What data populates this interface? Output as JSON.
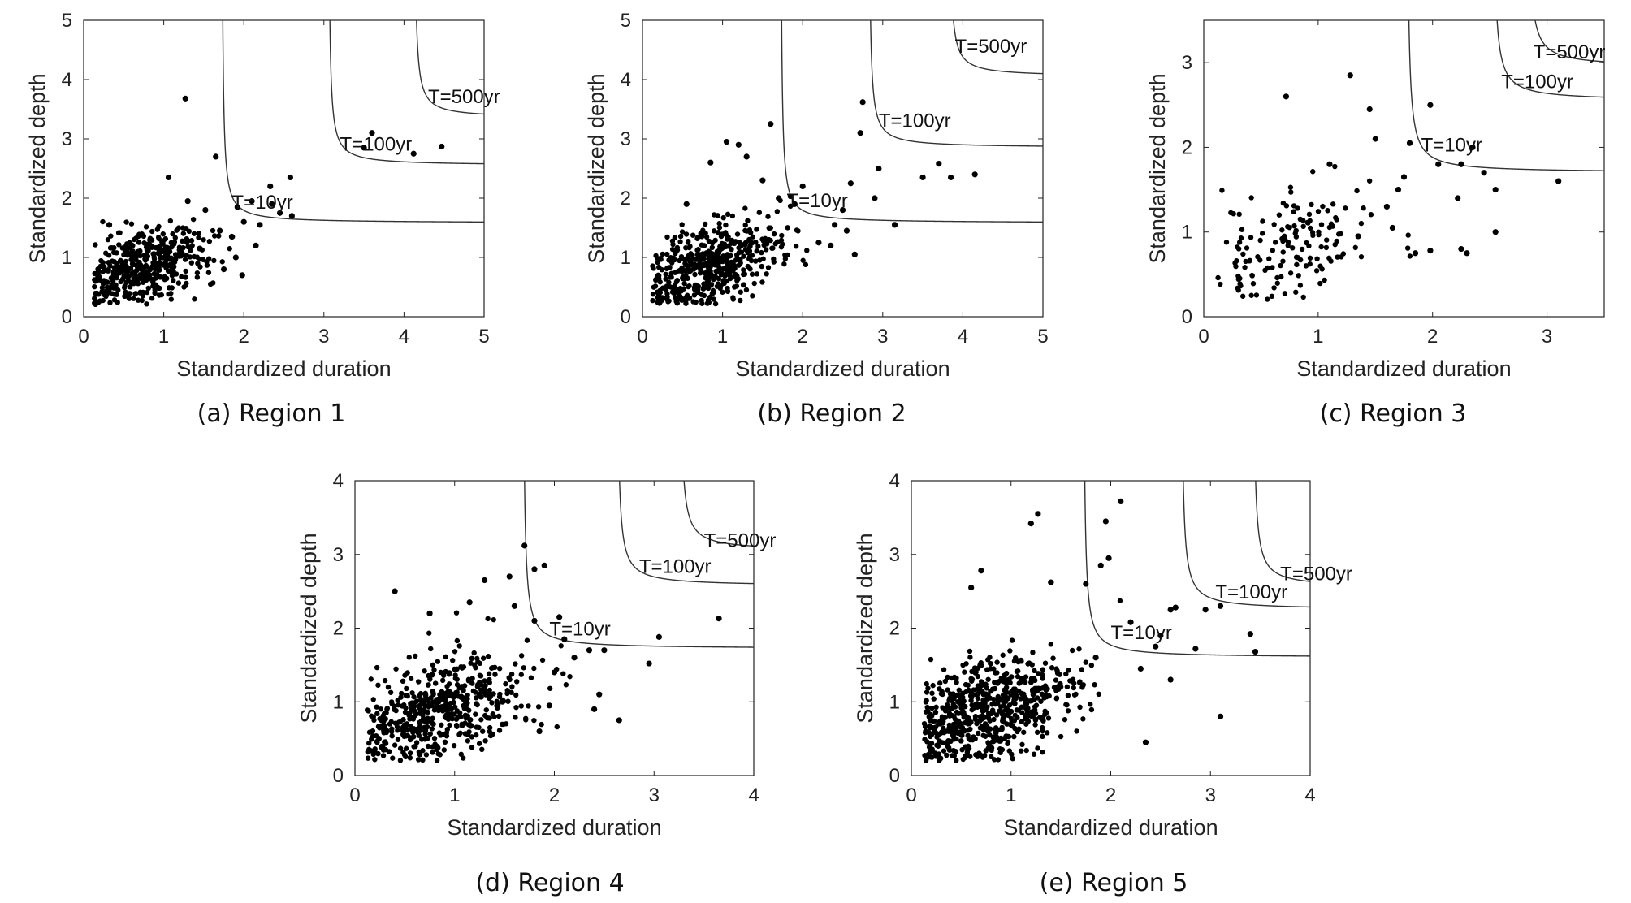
{
  "figure": {
    "xlabel": "Standardized duration",
    "ylabel": "Standardized depth"
  },
  "chart_data": [
    {
      "type": "scatter",
      "caption": "(a) Region 1",
      "xlabel": "Standardized duration",
      "ylabel": "Standardized depth",
      "xlim": [
        0,
        5
      ],
      "ylim": [
        0,
        5
      ],
      "xticks": [
        "0",
        "1",
        "2",
        "3",
        "4",
        "5"
      ],
      "yticks": [
        "0",
        "1",
        "2",
        "3",
        "4",
        "5"
      ],
      "cluster": {
        "cx": 0.75,
        "cy": 0.85,
        "sx": 0.4,
        "sy": 0.3,
        "n": 420
      },
      "points": [
        [
          1.27,
          3.68
        ],
        [
          1.65,
          2.7
        ],
        [
          3.6,
          3.1
        ],
        [
          4.47,
          2.87
        ],
        [
          3.5,
          2.85
        ],
        [
          4.12,
          2.75
        ],
        [
          2.58,
          2.35
        ],
        [
          2.33,
          2.2
        ],
        [
          1.06,
          2.35
        ],
        [
          2.1,
          1.95
        ],
        [
          2.45,
          1.75
        ],
        [
          1.92,
          1.85
        ],
        [
          2.2,
          1.55
        ],
        [
          1.7,
          1.45
        ],
        [
          2.35,
          1.9
        ],
        [
          1.85,
          1.35
        ],
        [
          2.0,
          1.6
        ],
        [
          1.45,
          1.15
        ],
        [
          1.9,
          1.0
        ],
        [
          1.75,
          0.8
        ],
        [
          1.52,
          1.8
        ],
        [
          2.6,
          1.7
        ],
        [
          1.3,
          1.95
        ],
        [
          0.32,
          1.55
        ],
        [
          1.98,
          0.7
        ],
        [
          2.15,
          1.2
        ]
      ],
      "return_periods": [
        {
          "label": "T=10yr",
          "x_asym": 1.72,
          "y_asym": 1.58,
          "label_x": 1.85,
          "label_y": 1.82
        },
        {
          "label": "T=100yr",
          "x_asym": 3.05,
          "y_asym": 2.55,
          "label_x": 3.2,
          "label_y": 2.8
        },
        {
          "label": "T=500yr",
          "x_asym": 4.12,
          "y_asym": 3.35,
          "label_x": 4.3,
          "label_y": 3.6
        }
      ]
    },
    {
      "type": "scatter",
      "caption": "(b) Region 2",
      "xlabel": "Standardized duration",
      "ylabel": "Standardized depth",
      "xlim": [
        0,
        5
      ],
      "ylim": [
        0,
        5
      ],
      "xticks": [
        "0",
        "1",
        "2",
        "3",
        "4",
        "5"
      ],
      "yticks": [
        "0",
        "1",
        "2",
        "3",
        "4",
        "5"
      ],
      "cluster": {
        "cx": 0.85,
        "cy": 0.85,
        "sx": 0.45,
        "sy": 0.35,
        "n": 480
      },
      "points": [
        [
          2.75,
          3.62
        ],
        [
          2.72,
          3.1
        ],
        [
          1.6,
          3.25
        ],
        [
          3.7,
          2.58
        ],
        [
          3.5,
          2.35
        ],
        [
          3.85,
          2.35
        ],
        [
          4.15,
          2.4
        ],
        [
          2.95,
          2.5
        ],
        [
          2.6,
          2.25
        ],
        [
          1.05,
          2.95
        ],
        [
          1.2,
          2.9
        ],
        [
          0.85,
          2.6
        ],
        [
          1.3,
          2.7
        ],
        [
          2.4,
          1.55
        ],
        [
          2.9,
          2.0
        ],
        [
          2.55,
          1.45
        ],
        [
          2.2,
          1.25
        ],
        [
          1.7,
          2.0
        ],
        [
          2.0,
          2.2
        ],
        [
          3.15,
          1.55
        ],
        [
          1.9,
          1.9
        ],
        [
          2.5,
          1.8
        ],
        [
          2.65,
          1.05
        ],
        [
          2.35,
          1.2
        ],
        [
          1.5,
          2.3
        ],
        [
          0.55,
          1.9
        ]
      ],
      "return_periods": [
        {
          "label": "T=10yr",
          "x_asym": 1.72,
          "y_asym": 1.58,
          "label_x": 1.8,
          "label_y": 1.85
        },
        {
          "label": "T=100yr",
          "x_asym": 2.82,
          "y_asym": 2.85,
          "label_x": 2.95,
          "label_y": 3.2
        },
        {
          "label": "T=500yr",
          "x_asym": 3.82,
          "y_asym": 4.05,
          "label_x": 3.9,
          "label_y": 4.45
        }
      ]
    },
    {
      "type": "scatter",
      "caption": "(c) Region 3",
      "xlabel": "Standardized duration",
      "ylabel": "Standardized depth",
      "xlim": [
        0,
        3.5
      ],
      "ylim": [
        0,
        3.5
      ],
      "xticks": [
        "0",
        "1",
        "2",
        "3"
      ],
      "yticks": [
        "0",
        "1",
        "2",
        "3"
      ],
      "cluster": {
        "cx": 0.75,
        "cy": 0.85,
        "sx": 0.35,
        "sy": 0.3,
        "n": 150
      },
      "points": [
        [
          1.28,
          2.85
        ],
        [
          0.72,
          2.6
        ],
        [
          1.45,
          2.45
        ],
        [
          1.98,
          2.5
        ],
        [
          2.35,
          2.0
        ],
        [
          2.25,
          1.8
        ],
        [
          2.45,
          1.7
        ],
        [
          2.22,
          1.4
        ],
        [
          2.55,
          1.5
        ],
        [
          3.1,
          1.6
        ],
        [
          2.25,
          0.8
        ],
        [
          2.55,
          1.0
        ],
        [
          2.3,
          0.75
        ],
        [
          1.98,
          0.78
        ],
        [
          1.8,
          2.05
        ],
        [
          1.75,
          1.65
        ],
        [
          1.85,
          0.75
        ],
        [
          1.5,
          2.1
        ],
        [
          1.6,
          1.3
        ],
        [
          2.05,
          1.8
        ],
        [
          1.1,
          1.8
        ],
        [
          1.65,
          1.05
        ],
        [
          1.35,
          0.95
        ],
        [
          1.7,
          1.5
        ]
      ],
      "return_periods": [
        {
          "label": "T=10yr",
          "x_asym": 1.77,
          "y_asym": 1.7,
          "label_x": 1.9,
          "label_y": 1.95
        },
        {
          "label": "T=100yr",
          "x_asym": 2.52,
          "y_asym": 2.55,
          "label_x": 2.6,
          "label_y": 2.7
        },
        {
          "label": "T=500yr",
          "x_asym": 2.82,
          "y_asym": 2.95,
          "label_x": 2.88,
          "label_y": 3.05
        }
      ]
    },
    {
      "type": "scatter",
      "caption": "(d) Region 4",
      "xlabel": "Standardized duration",
      "ylabel": "Standardized depth",
      "xlim": [
        0,
        4
      ],
      "ylim": [
        0,
        4
      ],
      "xticks": [
        "0",
        "1",
        "2",
        "3",
        "4"
      ],
      "yticks": [
        "0",
        "1",
        "2",
        "3",
        "4"
      ],
      "cluster": {
        "cx": 0.85,
        "cy": 0.9,
        "sx": 0.45,
        "sy": 0.35,
        "n": 520
      },
      "points": [
        [
          1.7,
          3.12
        ],
        [
          1.9,
          2.85
        ],
        [
          1.8,
          2.8
        ],
        [
          1.55,
          2.7
        ],
        [
          1.3,
          2.65
        ],
        [
          0.4,
          2.5
        ],
        [
          2.05,
          2.15
        ],
        [
          1.8,
          2.1
        ],
        [
          2.35,
          1.7
        ],
        [
          2.45,
          1.1
        ],
        [
          2.4,
          0.9
        ],
        [
          2.65,
          0.75
        ],
        [
          3.05,
          1.88
        ],
        [
          2.95,
          1.52
        ],
        [
          3.65,
          2.13
        ],
        [
          2.1,
          1.85
        ],
        [
          2.0,
          1.4
        ],
        [
          1.95,
          0.95
        ],
        [
          2.2,
          1.6
        ],
        [
          1.6,
          2.3
        ],
        [
          1.15,
          2.35
        ],
        [
          0.75,
          2.2
        ],
        [
          1.85,
          0.6
        ],
        [
          2.5,
          1.7
        ]
      ],
      "return_periods": [
        {
          "label": "T=10yr",
          "x_asym": 1.68,
          "y_asym": 1.72,
          "label_x": 1.95,
          "label_y": 1.9
        },
        {
          "label": "T=100yr",
          "x_asym": 2.62,
          "y_asym": 2.57,
          "label_x": 2.85,
          "label_y": 2.75
        },
        {
          "label": "T=500yr",
          "x_asym": 3.25,
          "y_asym": 3.05,
          "label_x": 3.5,
          "label_y": 3.1
        }
      ]
    },
    {
      "type": "scatter",
      "caption": "(e) Region 5",
      "xlabel": "Standardized duration",
      "ylabel": "Standardized depth",
      "xlim": [
        0,
        4
      ],
      "ylim": [
        0,
        4
      ],
      "xticks": [
        "0",
        "1",
        "2",
        "3",
        "4"
      ],
      "yticks": [
        "0",
        "1",
        "2",
        "3",
        "4"
      ],
      "cluster": {
        "cx": 0.8,
        "cy": 0.9,
        "sx": 0.45,
        "sy": 0.35,
        "n": 620
      },
      "points": [
        [
          2.1,
          3.72
        ],
        [
          1.27,
          3.55
        ],
        [
          1.2,
          3.42
        ],
        [
          1.95,
          3.45
        ],
        [
          1.98,
          2.95
        ],
        [
          1.9,
          2.85
        ],
        [
          0.7,
          2.78
        ],
        [
          0.6,
          2.55
        ],
        [
          1.4,
          2.62
        ],
        [
          1.4,
          2.62
        ],
        [
          1.75,
          2.6
        ],
        [
          2.65,
          2.28
        ],
        [
          2.6,
          2.25
        ],
        [
          2.95,
          2.25
        ],
        [
          3.1,
          2.3
        ],
        [
          2.2,
          2.08
        ],
        [
          2.5,
          1.9
        ],
        [
          2.45,
          1.75
        ],
        [
          2.3,
          1.45
        ],
        [
          2.6,
          1.3
        ],
        [
          2.35,
          0.45
        ],
        [
          3.1,
          0.8
        ],
        [
          2.85,
          1.72
        ],
        [
          3.4,
          1.92
        ],
        [
          3.45,
          1.68
        ],
        [
          1.85,
          1.6
        ]
      ],
      "return_periods": [
        {
          "label": "T=10yr",
          "x_asym": 1.72,
          "y_asym": 1.6,
          "label_x": 2.0,
          "label_y": 1.85
        },
        {
          "label": "T=100yr",
          "x_asym": 2.7,
          "y_asym": 2.25,
          "label_x": 3.05,
          "label_y": 2.4
        },
        {
          "label": "T=500yr",
          "x_asym": 3.42,
          "y_asym": 2.55,
          "label_x": 3.7,
          "label_y": 2.65
        }
      ]
    }
  ]
}
